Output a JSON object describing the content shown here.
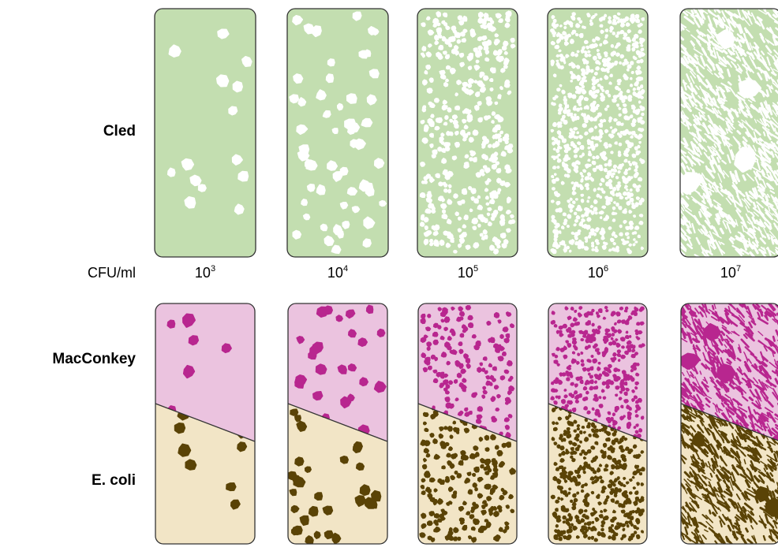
{
  "rows": {
    "cled_label": "Cled",
    "macconkey_label": "MacConkey",
    "ecoli_label": "E. coli"
  },
  "concentration": {
    "unit_label": "CFU/ml",
    "items": [
      {
        "base": "10",
        "exp": "3"
      },
      {
        "base": "10",
        "exp": "4"
      },
      {
        "base": "10",
        "exp": "5"
      },
      {
        "base": "10",
        "exp": "6"
      },
      {
        "base": "10",
        "exp": "7"
      }
    ]
  },
  "colors": {
    "cled_bg": "#c3deb0",
    "cled_colony": "#ffffff",
    "macconkey_bg": "#ebc3df",
    "macconkey_colony": "#b8268f",
    "ecoli_bg": "#f2e5c6",
    "ecoli_colony": "#5a4306",
    "outline": "#333333"
  }
}
